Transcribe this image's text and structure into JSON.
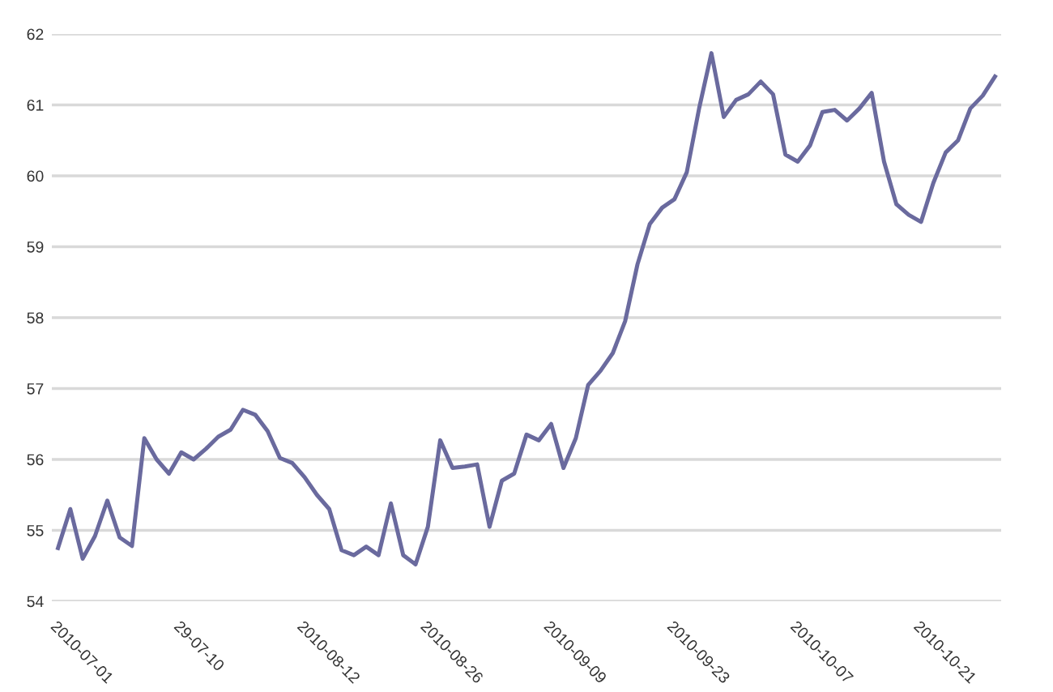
{
  "chart_data": {
    "type": "line",
    "categories": [
      "2010-07-01",
      null,
      null,
      null,
      null,
      null,
      null,
      null,
      null,
      null,
      "29-07-10",
      null,
      null,
      null,
      null,
      null,
      null,
      null,
      null,
      null,
      "2010-08-12",
      null,
      null,
      null,
      null,
      null,
      null,
      null,
      null,
      null,
      "2010-08-26",
      null,
      null,
      null,
      null,
      null,
      null,
      null,
      null,
      null,
      "2010-09-09",
      null,
      null,
      null,
      null,
      null,
      null,
      null,
      null,
      null,
      "2010-09-23",
      null,
      null,
      null,
      null,
      null,
      null,
      null,
      null,
      null,
      "2010-10-07",
      null,
      null,
      null,
      null,
      null,
      null,
      null,
      null,
      null,
      "2010-10-21",
      null,
      null,
      null,
      null,
      null,
      null
    ],
    "series": [
      {
        "color": "#6a6a9e",
        "values": [
          54.75,
          55.3,
          54.6,
          54.92,
          55.42,
          54.9,
          54.78,
          56.3,
          56.0,
          55.8,
          56.1,
          56.0,
          56.15,
          56.32,
          56.42,
          56.7,
          56.63,
          56.4,
          56.02,
          55.95,
          55.75,
          55.5,
          55.3,
          54.72,
          54.65,
          54.77,
          54.65,
          55.38,
          54.65,
          54.52,
          55.05,
          56.27,
          55.88,
          55.9,
          55.93,
          55.05,
          55.7,
          55.8,
          56.35,
          56.27,
          56.5,
          55.88,
          56.3,
          57.05,
          57.25,
          57.5,
          57.95,
          58.75,
          59.32,
          59.55,
          59.67,
          60.05,
          60.95,
          61.73,
          60.83,
          61.07,
          61.15,
          61.33,
          61.15,
          60.3,
          60.2,
          60.43,
          60.9,
          60.93,
          60.78,
          60.95,
          61.17,
          60.2,
          59.6,
          59.45,
          59.35,
          59.9,
          60.33,
          60.5,
          60.95,
          61.13,
          61.4
        ]
      }
    ],
    "ylim": [
      54,
      62
    ],
    "yticks": [
      54,
      55,
      56,
      57,
      58,
      59,
      60,
      61,
      62
    ],
    "grid": "y",
    "legend": false,
    "marker": "none",
    "line_style": "solid"
  }
}
